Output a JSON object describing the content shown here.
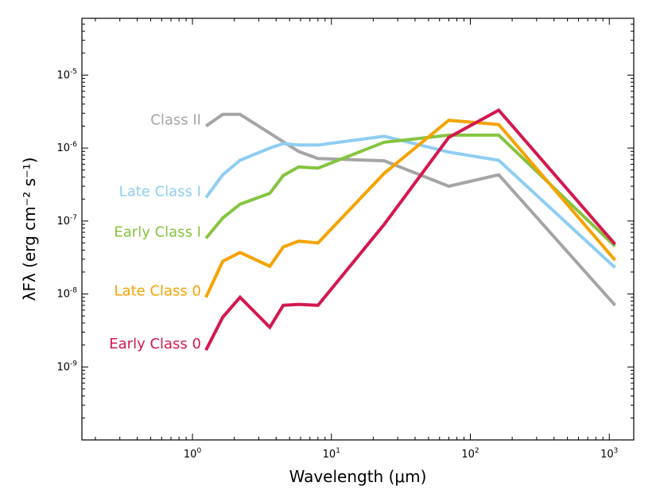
{
  "chart_data": {
    "type": "line",
    "title": "",
    "xlabel": "Wavelength (μm)",
    "ylabel": "λFλ (erg cm⁻² s⁻¹)",
    "x_scale": "log",
    "y_scale": "log",
    "xlim": [
      0.16,
      1500
    ],
    "ylim": [
      1e-10,
      6e-05
    ],
    "x_ticks": [
      {
        "value": 1,
        "base": "10",
        "exp": "0"
      },
      {
        "value": 10,
        "base": "10",
        "exp": "1"
      },
      {
        "value": 100,
        "base": "10",
        "exp": "2"
      },
      {
        "value": 1000,
        "base": "10",
        "exp": "3"
      }
    ],
    "y_ticks": [
      {
        "value": 1e-09,
        "base": "10",
        "exp": "-9"
      },
      {
        "value": 1e-08,
        "base": "10",
        "exp": "-8"
      },
      {
        "value": 1e-07,
        "base": "10",
        "exp": "-7"
      },
      {
        "value": 1e-06,
        "base": "10",
        "exp": "-6"
      },
      {
        "value": 1e-05,
        "base": "10",
        "exp": "-5"
      }
    ],
    "grid": false,
    "legend": "inline labels at left end of each series",
    "series": [
      {
        "name": "Class II",
        "color": "#a5a5a5",
        "x": [
          1.25,
          1.65,
          2.2,
          3.6,
          5.8,
          8.0,
          24,
          70,
          160,
          1100
        ],
        "y": [
          2e-06,
          2.9e-06,
          2.9e-06,
          1.6e-06,
          9e-07,
          7.2e-07,
          6.7e-07,
          3e-07,
          4.3e-07,
          7e-09
        ]
      },
      {
        "name": "Late Class I",
        "color": "#8ecdf2",
        "x": [
          1.25,
          1.65,
          2.2,
          3.6,
          4.5,
          5.8,
          8.0,
          24,
          70,
          160,
          1100
        ],
        "y": [
          2.1e-07,
          4.3e-07,
          6.8e-07,
          1e-06,
          1.15e-06,
          1.1e-06,
          1.1e-06,
          1.45e-06,
          8.8e-07,
          6.8e-07,
          2.3e-08
        ]
      },
      {
        "name": "Early Class I",
        "color": "#86c440",
        "x": [
          1.25,
          1.65,
          2.2,
          3.6,
          4.5,
          5.8,
          8.0,
          24,
          70,
          160,
          1100
        ],
        "y": [
          5.8e-08,
          1.1e-07,
          1.7e-07,
          2.4e-07,
          4.2e-07,
          5.5e-07,
          5.3e-07,
          1.2e-06,
          1.5e-06,
          1.5e-06,
          4.5e-08
        ]
      },
      {
        "name": "Late Class 0",
        "color": "#f5a300",
        "x": [
          1.25,
          1.65,
          2.2,
          3.6,
          4.5,
          5.8,
          8.0,
          24,
          70,
          160,
          1100
        ],
        "y": [
          9e-09,
          2.8e-08,
          3.7e-08,
          2.4e-08,
          4.4e-08,
          5.3e-08,
          5e-08,
          4.5e-07,
          2.4e-06,
          2.1e-06,
          2.9e-08
        ]
      },
      {
        "name": "Early Class 0",
        "color": "#d3184e",
        "x": [
          1.25,
          1.65,
          2.2,
          3.6,
          4.5,
          5.8,
          8.0,
          24,
          70,
          160,
          1100
        ],
        "y": [
          1.7e-09,
          4.8e-09,
          9e-09,
          3.5e-09,
          7e-09,
          7.2e-09,
          7e-09,
          9e-08,
          1.4e-06,
          3.3e-06,
          4.8e-08
        ]
      }
    ]
  }
}
